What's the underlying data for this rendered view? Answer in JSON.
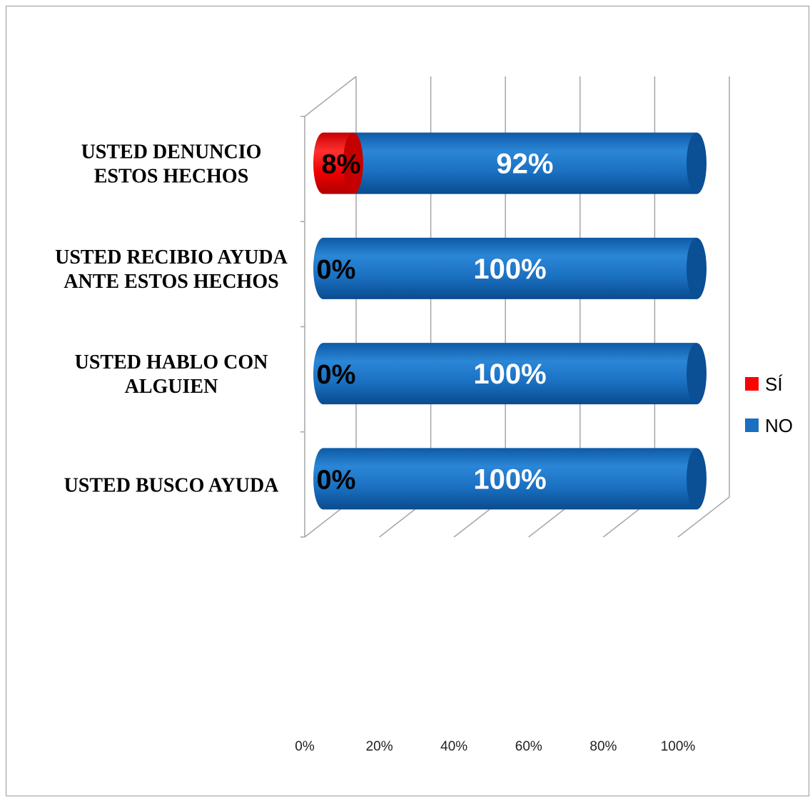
{
  "chart_data": {
    "type": "bar",
    "orientation": "horizontal",
    "stacked": "100%",
    "style": "3d-cylinder",
    "categories": [
      [
        "USTED DENUNCIO",
        "ESTOS HECHOS"
      ],
      [
        "USTED RECIBIO AYUDA",
        "ANTE ESTOS HECHOS"
      ],
      [
        "USTED HABLO CON",
        "ALGUIEN"
      ],
      [
        "USTED BUSCO AYUDA"
      ]
    ],
    "series": [
      {
        "name": "SÍ",
        "color": "#ff0000",
        "values": [
          8,
          0,
          0,
          0
        ],
        "labels": [
          "8%",
          "0%",
          "0%",
          "0%"
        ]
      },
      {
        "name": "NO",
        "color": "#1a6fc0",
        "values": [
          92,
          100,
          100,
          100
        ],
        "labels": [
          "92%",
          "100%",
          "100%",
          "100%"
        ]
      }
    ],
    "xaxis": {
      "ticks": [
        "0%",
        "20%",
        "40%",
        "60%",
        "80%",
        "100%"
      ],
      "range": [
        0,
        100
      ]
    },
    "grid": true,
    "legend": {
      "position": "right"
    }
  }
}
